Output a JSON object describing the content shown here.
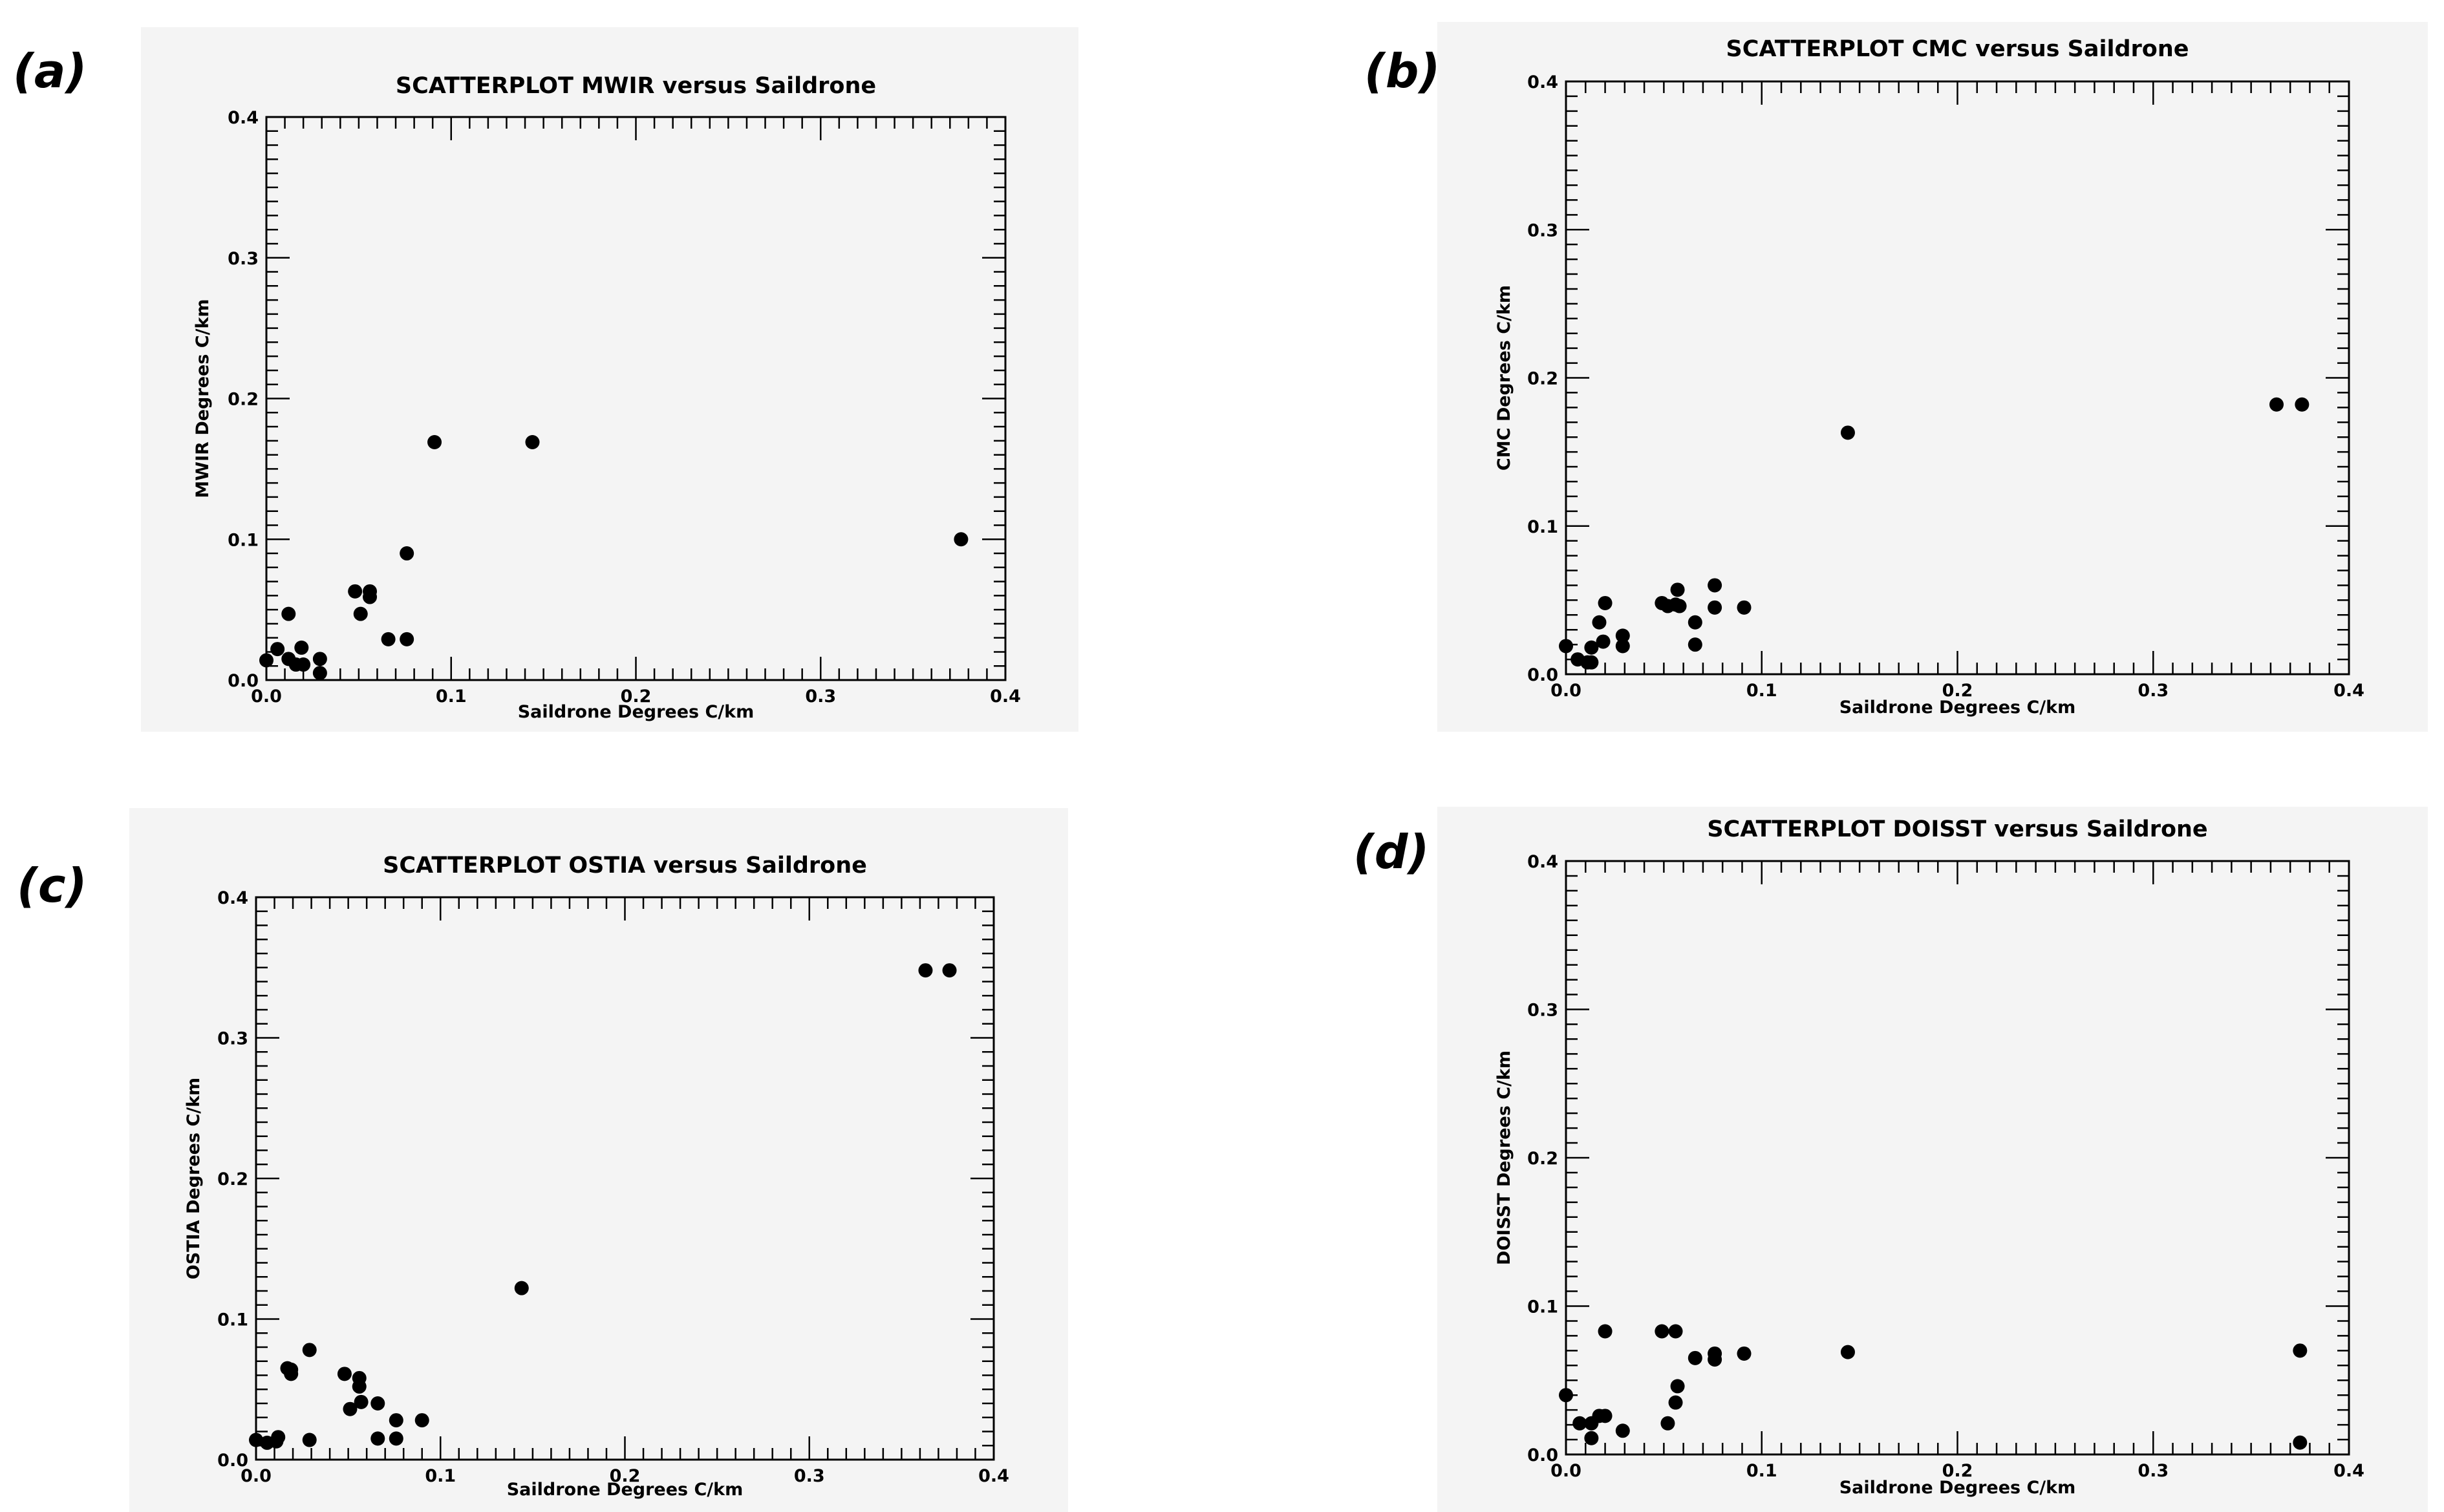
{
  "chart_data": [
    {
      "type": "scatter",
      "panel_label": "(a)",
      "title": "SCATTERPLOT MWIR versus Saildrone",
      "xlabel": "Saildrone Degrees C/km",
      "ylabel": "MWIR Degrees C/km",
      "xlim": [
        0,
        0.4
      ],
      "ylim": [
        0,
        0.4
      ],
      "xticks": [
        "0.0",
        "0.1",
        "0.2",
        "0.3",
        "0.4"
      ],
      "yticks": [
        "0.0",
        "0.1",
        "0.2",
        "0.3",
        "0.4"
      ],
      "points": [
        [
          0.0,
          0.014
        ],
        [
          0.006,
          0.022
        ],
        [
          0.012,
          0.015
        ],
        [
          0.012,
          0.047
        ],
        [
          0.016,
          0.011
        ],
        [
          0.02,
          0.011
        ],
        [
          0.019,
          0.023
        ],
        [
          0.029,
          0.015
        ],
        [
          0.029,
          0.005
        ],
        [
          0.048,
          0.063
        ],
        [
          0.051,
          0.047
        ],
        [
          0.056,
          0.063
        ],
        [
          0.056,
          0.059
        ],
        [
          0.066,
          0.029
        ],
        [
          0.076,
          0.029
        ],
        [
          0.076,
          0.09
        ],
        [
          0.091,
          0.169
        ],
        [
          0.144,
          0.169
        ],
        [
          0.376,
          0.1
        ]
      ]
    },
    {
      "type": "scatter",
      "panel_label": "(b)",
      "title": "SCATTERPLOT CMC versus Saildrone",
      "xlabel": "Saildrone Degrees C/km",
      "ylabel": "CMC Degrees C/km",
      "xlim": [
        0,
        0.4
      ],
      "ylim": [
        0,
        0.4
      ],
      "xticks": [
        "0.0",
        "0.1",
        "0.2",
        "0.3",
        "0.4"
      ],
      "yticks": [
        "0.0",
        "0.1",
        "0.2",
        "0.3",
        "0.4"
      ],
      "points": [
        [
          0.0,
          0.019
        ],
        [
          0.006,
          0.01
        ],
        [
          0.011,
          0.008
        ],
        [
          0.013,
          0.018
        ],
        [
          0.013,
          0.008
        ],
        [
          0.017,
          0.035
        ],
        [
          0.019,
          0.022
        ],
        [
          0.02,
          0.048
        ],
        [
          0.029,
          0.026
        ],
        [
          0.029,
          0.019
        ],
        [
          0.049,
          0.048
        ],
        [
          0.052,
          0.046
        ],
        [
          0.056,
          0.047
        ],
        [
          0.057,
          0.057
        ],
        [
          0.058,
          0.046
        ],
        [
          0.066,
          0.035
        ],
        [
          0.066,
          0.02
        ],
        [
          0.076,
          0.06
        ],
        [
          0.076,
          0.045
        ],
        [
          0.091,
          0.045
        ],
        [
          0.144,
          0.163
        ],
        [
          0.363,
          0.182
        ],
        [
          0.376,
          0.182
        ]
      ]
    },
    {
      "type": "scatter",
      "panel_label": "(c)",
      "title": "SCATTERPLOT OSTIA versus Saildrone",
      "xlabel": "Saildrone Degrees C/km",
      "ylabel": "OSTIA Degrees C/km",
      "xlim": [
        0,
        0.4
      ],
      "ylim": [
        0,
        0.4
      ],
      "xticks": [
        "0.0",
        "0.1",
        "0.2",
        "0.3",
        "0.4"
      ],
      "yticks": [
        "0.0",
        "0.1",
        "0.2",
        "0.3",
        "0.4"
      ],
      "points": [
        [
          0.0,
          0.014
        ],
        [
          0.006,
          0.012
        ],
        [
          0.011,
          0.013
        ],
        [
          0.012,
          0.016
        ],
        [
          0.017,
          0.065
        ],
        [
          0.019,
          0.064
        ],
        [
          0.019,
          0.061
        ],
        [
          0.029,
          0.078
        ],
        [
          0.029,
          0.014
        ],
        [
          0.048,
          0.061
        ],
        [
          0.051,
          0.036
        ],
        [
          0.056,
          0.058
        ],
        [
          0.056,
          0.052
        ],
        [
          0.057,
          0.041
        ],
        [
          0.066,
          0.04
        ],
        [
          0.066,
          0.015
        ],
        [
          0.076,
          0.028
        ],
        [
          0.076,
          0.015
        ],
        [
          0.09,
          0.028
        ],
        [
          0.144,
          0.122
        ],
        [
          0.363,
          0.348
        ],
        [
          0.376,
          0.348
        ]
      ]
    },
    {
      "type": "scatter",
      "panel_label": "(d)",
      "title": "SCATTERPLOT DOISST versus Saildrone",
      "xlabel": "Saildrone Degrees C/km",
      "ylabel": "DOISST Degrees C/km",
      "xlim": [
        0,
        0.4
      ],
      "ylim": [
        0,
        0.4
      ],
      "xticks": [
        "0.0",
        "0.1",
        "0.2",
        "0.3",
        "0.4"
      ],
      "yticks": [
        "0.0",
        "0.1",
        "0.2",
        "0.3",
        "0.4"
      ],
      "points": [
        [
          0.0,
          0.04
        ],
        [
          0.007,
          0.021
        ],
        [
          0.013,
          0.011
        ],
        [
          0.013,
          0.021
        ],
        [
          0.017,
          0.026
        ],
        [
          0.02,
          0.026
        ],
        [
          0.02,
          0.083
        ],
        [
          0.029,
          0.016
        ],
        [
          0.049,
          0.083
        ],
        [
          0.052,
          0.021
        ],
        [
          0.056,
          0.035
        ],
        [
          0.056,
          0.083
        ],
        [
          0.057,
          0.046
        ],
        [
          0.066,
          0.065
        ],
        [
          0.076,
          0.068
        ],
        [
          0.076,
          0.064
        ],
        [
          0.091,
          0.068
        ],
        [
          0.144,
          0.069
        ],
        [
          0.375,
          0.07
        ],
        [
          0.375,
          0.008
        ]
      ]
    }
  ]
}
